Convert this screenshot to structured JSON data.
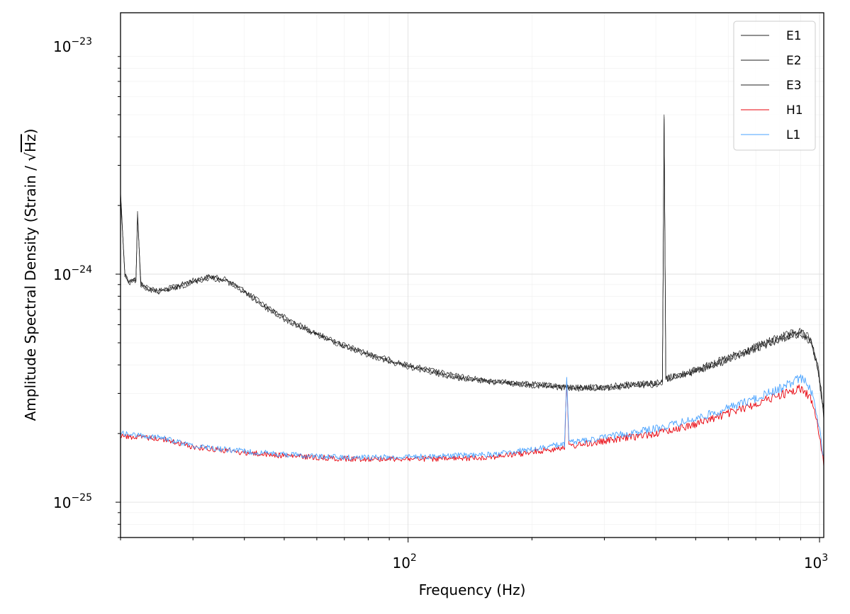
{
  "chart_data": {
    "type": "line",
    "title": "",
    "xlabel": "Frequency (Hz)",
    "ylabel_prefix": "Amplitude Spectral Density (Strain / ",
    "ylabel_root": "√",
    "ylabel_unit": "Hz",
    "ylabel_suffix": ")",
    "x_scale": "log",
    "y_scale": "log",
    "xlim": [
      20,
      1024
    ],
    "ylim": [
      7e-26,
      1.4e-23
    ],
    "grid": true,
    "legend_position": "top-right",
    "x_major_ticks": [
      {
        "base": "10",
        "exp": "2",
        "value": 100
      },
      {
        "base": "10",
        "exp": "3",
        "value": 1000
      }
    ],
    "y_major_ticks": [
      {
        "base": "10",
        "exp": "−23",
        "value": 1e-23
      },
      {
        "base": "10",
        "exp": "−24",
        "value": 1e-24
      },
      {
        "base": "10",
        "exp": "−25",
        "value": 1e-25
      }
    ],
    "series": [
      {
        "name": "E1",
        "color": "#222222",
        "points": [
          [
            20,
            2.3e-24
          ],
          [
            20.5,
            1e-24
          ],
          [
            21,
            9.3e-25
          ],
          [
            21.8,
            9.5e-25
          ],
          [
            22,
            1.85e-24
          ],
          [
            22.4,
            9.2e-25
          ],
          [
            23,
            8.8e-25
          ],
          [
            25,
            8.5e-25
          ],
          [
            28,
            9e-25
          ],
          [
            30,
            9.4e-25
          ],
          [
            33,
            9.8e-25
          ],
          [
            36,
            9.5e-25
          ],
          [
            40,
            8.5e-25
          ],
          [
            45,
            7.3e-25
          ],
          [
            50,
            6.5e-25
          ],
          [
            60,
            5.5e-25
          ],
          [
            70,
            4.9e-25
          ],
          [
            80,
            4.5e-25
          ],
          [
            100,
            4e-25
          ],
          [
            130,
            3.6e-25
          ],
          [
            160,
            3.4e-25
          ],
          [
            200,
            3.3e-25
          ],
          [
            250,
            3.2e-25
          ],
          [
            300,
            3.2e-25
          ],
          [
            350,
            3.3e-25
          ],
          [
            415,
            3.35e-25
          ],
          [
            419,
            5e-24
          ],
          [
            423,
            3.5e-25
          ],
          [
            450,
            3.6e-25
          ],
          [
            500,
            3.8e-25
          ],
          [
            600,
            4.3e-25
          ],
          [
            700,
            4.8e-25
          ],
          [
            800,
            5.3e-25
          ],
          [
            900,
            5.6e-25
          ],
          [
            950,
            5.2e-25
          ],
          [
            990,
            4e-25
          ],
          [
            1024,
            2.5e-25
          ]
        ]
      },
      {
        "name": "E2",
        "color": "#222222",
        "points": [
          [
            20,
            2.2e-24
          ],
          [
            20.5,
            9.8e-25
          ],
          [
            21,
            9.1e-25
          ],
          [
            21.8,
            9.4e-25
          ],
          [
            22,
            1.8e-24
          ],
          [
            22.4,
            9e-25
          ],
          [
            23,
            8.6e-25
          ],
          [
            25,
            8.3e-25
          ],
          [
            28,
            8.8e-25
          ],
          [
            30,
            9.2e-25
          ],
          [
            33,
            9.6e-25
          ],
          [
            36,
            9.3e-25
          ],
          [
            40,
            8.3e-25
          ],
          [
            45,
            7.1e-25
          ],
          [
            50,
            6.3e-25
          ],
          [
            60,
            5.4e-25
          ],
          [
            70,
            4.8e-25
          ],
          [
            80,
            4.4e-25
          ],
          [
            100,
            3.9e-25
          ],
          [
            130,
            3.5e-25
          ],
          [
            160,
            3.35e-25
          ],
          [
            200,
            3.25e-25
          ],
          [
            250,
            3.15e-25
          ],
          [
            300,
            3.15e-25
          ],
          [
            350,
            3.25e-25
          ],
          [
            415,
            3.3e-25
          ],
          [
            419,
            4.8e-24
          ],
          [
            423,
            3.45e-25
          ],
          [
            450,
            3.55e-25
          ],
          [
            500,
            3.75e-25
          ],
          [
            600,
            4.2e-25
          ],
          [
            700,
            4.7e-25
          ],
          [
            800,
            5.2e-25
          ],
          [
            900,
            5.5e-25
          ],
          [
            950,
            5.1e-25
          ],
          [
            990,
            3.9e-25
          ],
          [
            1024,
            2.4e-25
          ]
        ]
      },
      {
        "name": "E3",
        "color": "#222222",
        "points": [
          [
            20,
            2.25e-24
          ],
          [
            20.5,
            9.9e-25
          ],
          [
            21,
            9.2e-25
          ],
          [
            21.8,
            9.45e-25
          ],
          [
            22,
            1.82e-24
          ],
          [
            22.4,
            9.1e-25
          ],
          [
            23,
            8.7e-25
          ],
          [
            25,
            8.4e-25
          ],
          [
            28,
            8.9e-25
          ],
          [
            30,
            9.3e-25
          ],
          [
            33,
            9.7e-25
          ],
          [
            36,
            9.4e-25
          ],
          [
            40,
            8.4e-25
          ],
          [
            45,
            7.2e-25
          ],
          [
            50,
            6.4e-25
          ],
          [
            60,
            5.45e-25
          ],
          [
            70,
            4.85e-25
          ],
          [
            80,
            4.45e-25
          ],
          [
            100,
            3.95e-25
          ],
          [
            130,
            3.55e-25
          ],
          [
            160,
            3.38e-25
          ],
          [
            200,
            3.28e-25
          ],
          [
            250,
            3.18e-25
          ],
          [
            300,
            3.18e-25
          ],
          [
            350,
            3.28e-25
          ],
          [
            415,
            3.32e-25
          ],
          [
            419,
            4.9e-24
          ],
          [
            423,
            3.48e-25
          ],
          [
            450,
            3.58e-25
          ],
          [
            500,
            3.78e-25
          ],
          [
            600,
            4.25e-25
          ],
          [
            700,
            4.75e-25
          ],
          [
            800,
            5.25e-25
          ],
          [
            900,
            5.55e-25
          ],
          [
            950,
            5.15e-25
          ],
          [
            990,
            3.95e-25
          ],
          [
            1024,
            2.45e-25
          ]
        ]
      },
      {
        "name": "H1",
        "color": "#e8000b",
        "points": [
          [
            20,
            1.95e-25
          ],
          [
            25,
            1.9e-25
          ],
          [
            30,
            1.75e-25
          ],
          [
            40,
            1.65e-25
          ],
          [
            50,
            1.6e-25
          ],
          [
            70,
            1.55e-25
          ],
          [
            100,
            1.55e-25
          ],
          [
            130,
            1.55e-25
          ],
          [
            160,
            1.58e-25
          ],
          [
            200,
            1.65e-25
          ],
          [
            240,
            1.75e-25
          ],
          [
            243,
            3.4e-25
          ],
          [
            246,
            1.76e-25
          ],
          [
            300,
            1.85e-25
          ],
          [
            400,
            2e-25
          ],
          [
            500,
            2.2e-25
          ],
          [
            600,
            2.45e-25
          ],
          [
            700,
            2.7e-25
          ],
          [
            800,
            2.95e-25
          ],
          [
            900,
            3.15e-25
          ],
          [
            950,
            2.9e-25
          ],
          [
            1000,
            2e-25
          ],
          [
            1024,
            1.5e-25
          ]
        ]
      },
      {
        "name": "L1",
        "color": "#4aa3ff",
        "points": [
          [
            20,
            2e-25
          ],
          [
            25,
            1.92e-25
          ],
          [
            30,
            1.77e-25
          ],
          [
            40,
            1.67e-25
          ],
          [
            50,
            1.62e-25
          ],
          [
            70,
            1.57e-25
          ],
          [
            100,
            1.58e-25
          ],
          [
            130,
            1.6e-25
          ],
          [
            160,
            1.62e-25
          ],
          [
            200,
            1.7e-25
          ],
          [
            240,
            1.8e-25
          ],
          [
            243,
            3.5e-25
          ],
          [
            246,
            1.82e-25
          ],
          [
            300,
            1.92e-25
          ],
          [
            400,
            2.1e-25
          ],
          [
            500,
            2.32e-25
          ],
          [
            600,
            2.58e-25
          ],
          [
            700,
            2.85e-25
          ],
          [
            800,
            3.15e-25
          ],
          [
            900,
            3.5e-25
          ],
          [
            950,
            3.2e-25
          ],
          [
            1000,
            2.1e-25
          ],
          [
            1024,
            1.55e-25
          ]
        ]
      }
    ]
  }
}
